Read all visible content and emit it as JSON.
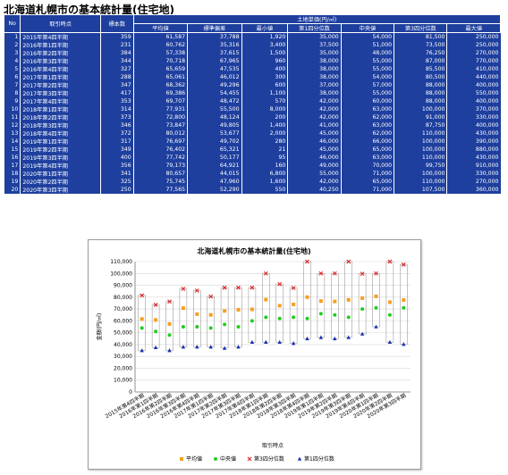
{
  "page": {
    "title": "北海道札幌市の基本統計量(住宅地)"
  },
  "table": {
    "headers": {
      "no": "No",
      "period": "取引時点",
      "samples": "標本数",
      "group": "土地単価(円/㎡)",
      "mean": "平均値",
      "sd": "標準偏差",
      "min": "最小値",
      "q1": "第1四分位数",
      "median": "中央値",
      "q3": "第3四分位数",
      "max": "最大値"
    },
    "rows": [
      {
        "no": "1",
        "period": "2015年第4四半期",
        "n": "359",
        "mean": "61,587",
        "sd": "37,788",
        "min": "1,920",
        "q1": "35,000",
        "median": "54,000",
        "q3": "81,500",
        "max": "250,000"
      },
      {
        "no": "2",
        "period": "2016年第1四半期",
        "n": "231",
        "mean": "60,762",
        "sd": "35,316",
        "min": "3,400",
        "q1": "37,500",
        "median": "51,000",
        "q3": "73,500",
        "max": "250,000"
      },
      {
        "no": "3",
        "period": "2016年第2四半期",
        "n": "384",
        "mean": "57,338",
        "sd": "37,615",
        "min": "1,500",
        "q1": "35,000",
        "median": "48,000",
        "q3": "76,250",
        "max": "270,000"
      },
      {
        "no": "4",
        "period": "2016年第3四半期",
        "n": "344",
        "mean": "70,718",
        "sd": "67,965",
        "min": "960",
        "q1": "38,000",
        "median": "55,000",
        "q3": "87,000",
        "max": "770,000"
      },
      {
        "no": "5",
        "period": "2016年第4四半期",
        "n": "327",
        "mean": "65,659",
        "sd": "47,535",
        "min": "400",
        "q1": "38,000",
        "median": "55,000",
        "q3": "85,500",
        "max": "410,000"
      },
      {
        "no": "6",
        "period": "2017年第1四半期",
        "n": "288",
        "mean": "65,061",
        "sd": "46,012",
        "min": "300",
        "q1": "38,000",
        "median": "54,000",
        "q3": "80,500",
        "max": "440,000"
      },
      {
        "no": "7",
        "period": "2017年第2四半期",
        "n": "347",
        "mean": "68,362",
        "sd": "49,296",
        "min": "600",
        "q1": "37,000",
        "median": "57,000",
        "q3": "88,000",
        "max": "400,000"
      },
      {
        "no": "8",
        "period": "2017年第3四半期",
        "n": "417",
        "mean": "69,386",
        "sd": "54,455",
        "min": "1,100",
        "q1": "38,000",
        "median": "55,000",
        "q3": "88,000",
        "max": "550,000"
      },
      {
        "no": "9",
        "period": "2017年第4四半期",
        "n": "353",
        "mean": "69,707",
        "sd": "48,472",
        "min": "570",
        "q1": "42,000",
        "median": "60,000",
        "q3": "88,000",
        "max": "400,000"
      },
      {
        "no": "10",
        "period": "2018年第1四半期",
        "n": "314",
        "mean": "77,931",
        "sd": "55,500",
        "min": "8,000",
        "q1": "42,000",
        "median": "63,000",
        "q3": "100,000",
        "max": "370,000"
      },
      {
        "no": "11",
        "period": "2018年第2四半期",
        "n": "373",
        "mean": "72,800",
        "sd": "48,124",
        "min": "200",
        "q1": "42,000",
        "median": "62,000",
        "q3": "91,000",
        "max": "330,000"
      },
      {
        "no": "12",
        "period": "2018年第3四半期",
        "n": "346",
        "mean": "73,847",
        "sd": "49,805",
        "min": "1,400",
        "q1": "41,000",
        "median": "63,000",
        "q3": "87,750",
        "max": "400,000"
      },
      {
        "no": "13",
        "period": "2018年第4四半期",
        "n": "372",
        "mean": "80,012",
        "sd": "53,677",
        "min": "2,000",
        "q1": "45,000",
        "median": "62,000",
        "q3": "110,000",
        "max": "430,000"
      },
      {
        "no": "14",
        "period": "2019年第1四半期",
        "n": "317",
        "mean": "76,697",
        "sd": "49,702",
        "min": "280",
        "q1": "46,000",
        "median": "66,000",
        "q3": "100,000",
        "max": "390,000"
      },
      {
        "no": "15",
        "period": "2019年第2四半期",
        "n": "349",
        "mean": "76,402",
        "sd": "65,321",
        "min": "21",
        "q1": "45,000",
        "median": "65,000",
        "q3": "100,000",
        "max": "880,000"
      },
      {
        "no": "16",
        "period": "2019年第3四半期",
        "n": "400",
        "mean": "77,742",
        "sd": "50,177",
        "min": "95",
        "q1": "46,000",
        "median": "63,000",
        "q3": "110,000",
        "max": "430,000"
      },
      {
        "no": "17",
        "period": "2019年第4四半期",
        "n": "356",
        "mean": "79,173",
        "sd": "64,921",
        "min": "160",
        "q1": "49,000",
        "median": "70,000",
        "q3": "99,750",
        "max": "910,000"
      },
      {
        "no": "18",
        "period": "2020年第1四半期",
        "n": "341",
        "mean": "80,657",
        "sd": "44,015",
        "min": "6,800",
        "q1": "55,000",
        "median": "71,000",
        "q3": "100,000",
        "max": "330,000"
      },
      {
        "no": "19",
        "period": "2020年第2四半期",
        "n": "325",
        "mean": "75,745",
        "sd": "47,960",
        "min": "1,600",
        "q1": "42,000",
        "median": "65,000",
        "q3": "110,000",
        "max": "270,000"
      },
      {
        "no": "20",
        "period": "2020年第3四半期",
        "n": "250",
        "mean": "77,565",
        "sd": "52,290",
        "min": "550",
        "q1": "40,250",
        "median": "71,000",
        "q3": "107,500",
        "max": "360,000"
      }
    ]
  },
  "chart_data": {
    "type": "scatter",
    "title": "北海道札幌市の基本統計量(住宅地)",
    "ylabel": "金額(円/㎡)",
    "xlabel": "取引時点",
    "ylim": [
      0,
      110000
    ],
    "y_ticks": [
      "0",
      "10,000",
      "20,000",
      "30,000",
      "40,000",
      "50,000",
      "60,000",
      "70,000",
      "80,000",
      "90,000",
      "100,000",
      "110,000"
    ],
    "grid": true,
    "legend_position": "bottom",
    "categories": [
      "2015年第4四半期",
      "2016年第1四半期",
      "2016年第2四半期",
      "2016年第3四半期",
      "2016年第4四半期",
      "2017年第1四半期",
      "2017年第2四半期",
      "2017年第3四半期",
      "2017年第4四半期",
      "2018年第1四半期",
      "2018年第2四半期",
      "2018年第3四半期",
      "2018年第4四半期",
      "2019年第1四半期",
      "2019年第2四半期",
      "2019年第3四半期",
      "2019年第4四半期",
      "2020年第1四半期",
      "2020年第2四半期",
      "2020年第3四半期"
    ],
    "series": [
      {
        "name": "平均値",
        "color": "#f5a020",
        "marker": "square",
        "values": [
          61587,
          60762,
          57338,
          70718,
          65659,
          65061,
          68362,
          69386,
          69707,
          77931,
          72800,
          73847,
          80012,
          76697,
          76402,
          77742,
          79173,
          80657,
          75745,
          77565
        ]
      },
      {
        "name": "中央値",
        "color": "#22cc22",
        "marker": "circle",
        "values": [
          54000,
          51000,
          48000,
          55000,
          55000,
          54000,
          57000,
          55000,
          60000,
          63000,
          62000,
          63000,
          62000,
          66000,
          65000,
          63000,
          70000,
          71000,
          65000,
          71000
        ]
      },
      {
        "name": "第3四分位数",
        "color": "#e02020",
        "marker": "x",
        "values": [
          81500,
          73500,
          76250,
          87000,
          85500,
          80500,
          88000,
          88000,
          88000,
          100000,
          91000,
          87750,
          110000,
          100000,
          100000,
          110000,
          99750,
          100000,
          110000,
          107500
        ]
      },
      {
        "name": "第1四分位数",
        "color": "#1a2fb0",
        "marker": "triangle",
        "values": [
          35000,
          37500,
          35000,
          38000,
          38000,
          38000,
          37000,
          38000,
          42000,
          42000,
          42000,
          41000,
          45000,
          46000,
          45000,
          46000,
          49000,
          55000,
          42000,
          40250
        ]
      }
    ]
  }
}
